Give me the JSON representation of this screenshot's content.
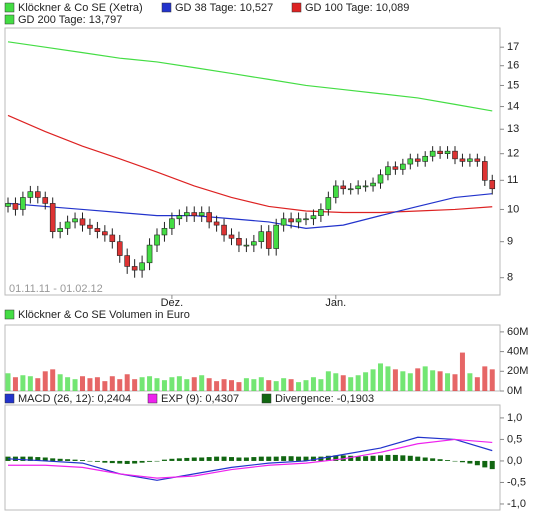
{
  "chart_data": [
    {
      "type": "candlestick",
      "name": "Klöckner & Co SE (Xetra)",
      "color": "#44dd44",
      "down_color": "#dd3333",
      "subtitle": "01.11.11 - 01.02.12",
      "log_scale": true,
      "categories": [
        null,
        null,
        null,
        null,
        null,
        null,
        null,
        null,
        null,
        null,
        null,
        null,
        null,
        null,
        null,
        null,
        null,
        null,
        null,
        null,
        null,
        null,
        "Dez.",
        null,
        null,
        null,
        null,
        null,
        null,
        null,
        null,
        null,
        null,
        null,
        null,
        null,
        null,
        null,
        null,
        null,
        null,
        null,
        null,
        null,
        "Jan.",
        null,
        null,
        null,
        null,
        null,
        null,
        null,
        null,
        null,
        null,
        null,
        null,
        null,
        null,
        null,
        null,
        null,
        null,
        null,
        null,
        null
      ],
      "open": [
        10.1,
        10.2,
        10.0,
        10.4,
        10.6,
        10.4,
        10.2,
        9.3,
        9.4,
        9.6,
        9.7,
        9.5,
        9.4,
        9.3,
        9.2,
        9.0,
        8.6,
        8.3,
        8.2,
        8.4,
        8.9,
        9.2,
        9.4,
        9.7,
        9.8,
        9.9,
        9.8,
        9.9,
        9.6,
        9.5,
        9.2,
        9.1,
        8.9,
        8.9,
        9.0,
        9.3,
        8.8,
        9.5,
        9.7,
        9.6,
        9.7,
        9.7,
        9.8,
        10.0,
        10.4,
        10.8,
        10.7,
        10.7,
        10.8,
        10.8,
        10.9,
        11.2,
        11.5,
        11.4,
        11.6,
        11.8,
        11.7,
        11.9,
        12.1,
        12.0,
        12.1,
        11.8,
        11.7,
        11.8,
        11.7,
        11.0
      ],
      "high": [
        10.4,
        10.4,
        10.6,
        10.8,
        10.8,
        10.6,
        10.4,
        9.6,
        9.8,
        9.9,
        9.9,
        9.7,
        9.6,
        9.5,
        9.4,
        9.2,
        8.8,
        8.5,
        8.6,
        9.1,
        9.4,
        9.6,
        9.9,
        10.0,
        10.1,
        10.1,
        10.1,
        10.1,
        9.8,
        9.7,
        9.4,
        9.3,
        9.1,
        9.2,
        9.5,
        9.5,
        9.7,
        9.9,
        9.9,
        9.9,
        9.9,
        10.0,
        10.2,
        10.6,
        11.0,
        11.0,
        10.9,
        11.0,
        11.0,
        11.1,
        11.4,
        11.7,
        11.7,
        11.8,
        12.0,
        12.0,
        12.1,
        12.3,
        12.3,
        12.3,
        12.3,
        12.0,
        12.0,
        12.0,
        11.9,
        11.2
      ],
      "low": [
        9.9,
        9.8,
        9.8,
        10.2,
        10.2,
        10.0,
        9.1,
        9.1,
        9.2,
        9.4,
        9.3,
        9.2,
        9.1,
        9.0,
        8.8,
        8.4,
        8.1,
        8.0,
        8.0,
        8.2,
        8.7,
        9.0,
        9.2,
        9.5,
        9.6,
        9.6,
        9.6,
        9.4,
        9.3,
        9.0,
        8.9,
        8.7,
        8.7,
        8.7,
        8.8,
        8.6,
        8.6,
        9.3,
        9.4,
        9.4,
        9.5,
        9.5,
        9.6,
        9.8,
        10.2,
        10.5,
        10.5,
        10.5,
        10.6,
        10.6,
        10.7,
        11.0,
        11.2,
        11.2,
        11.4,
        11.5,
        11.5,
        11.7,
        11.8,
        11.8,
        11.6,
        11.5,
        11.5,
        11.5,
        10.8,
        10.5
      ],
      "close": [
        10.2,
        10.0,
        10.4,
        10.6,
        10.4,
        10.2,
        9.3,
        9.4,
        9.6,
        9.7,
        9.5,
        9.4,
        9.3,
        9.2,
        9.0,
        8.6,
        8.3,
        8.2,
        8.4,
        8.9,
        9.2,
        9.4,
        9.7,
        9.8,
        9.9,
        9.8,
        9.9,
        9.6,
        9.5,
        9.2,
        9.1,
        8.9,
        8.9,
        9.0,
        9.3,
        8.8,
        9.5,
        9.7,
        9.6,
        9.7,
        9.7,
        9.8,
        10.0,
        10.4,
        10.8,
        10.7,
        10.7,
        10.8,
        10.8,
        10.9,
        11.2,
        11.5,
        11.4,
        11.6,
        11.8,
        11.7,
        11.9,
        12.1,
        12.0,
        12.1,
        11.8,
        11.7,
        11.8,
        11.7,
        11.0,
        10.7
      ],
      "series": [
        {
          "name": "GD 38 Tage: 10,527",
          "color": "#2233cc",
          "x": [
            0,
            5,
            10,
            15,
            20,
            25,
            30,
            35,
            40,
            45,
            50,
            55,
            60,
            65
          ],
          "values": [
            10.2,
            10.1,
            10.0,
            9.9,
            9.8,
            9.8,
            9.7,
            9.6,
            9.4,
            9.5,
            9.8,
            10.1,
            10.4,
            10.53
          ]
        },
        {
          "name": "GD 100 Tage: 10,089",
          "color": "#dd2222",
          "x": [
            0,
            5,
            10,
            15,
            20,
            25,
            30,
            35,
            40,
            45,
            50,
            55,
            60,
            65
          ],
          "values": [
            13.6,
            12.9,
            12.3,
            11.8,
            11.3,
            10.8,
            10.4,
            10.1,
            9.95,
            9.9,
            9.9,
            9.95,
            10.0,
            10.09
          ]
        },
        {
          "name": "GD 200 Tage: 13,797",
          "color": "#44dd44",
          "x": [
            0,
            5,
            10,
            15,
            20,
            25,
            30,
            35,
            40,
            45,
            50,
            55,
            60,
            65
          ],
          "values": [
            17.3,
            17.0,
            16.7,
            16.4,
            16.2,
            15.9,
            15.6,
            15.3,
            15.0,
            14.8,
            14.6,
            14.4,
            14.1,
            13.8
          ]
        }
      ],
      "ylim": [
        7.56,
        18.1
      ],
      "yticks": [
        8,
        9,
        10,
        11,
        12,
        13,
        14,
        15,
        16,
        17
      ]
    },
    {
      "type": "bar",
      "title": "Klöckner & Co SE Volumen in Euro",
      "color": "#44dd44",
      "values": [
        18,
        14,
        16,
        15,
        13,
        20,
        22,
        17,
        14,
        12,
        15,
        13,
        14,
        10,
        15,
        12,
        17,
        12,
        14,
        15,
        13,
        11,
        14,
        15,
        12,
        14,
        16,
        13,
        10,
        12,
        11,
        9,
        13,
        12,
        14,
        11,
        10,
        13,
        12,
        9,
        11,
        14,
        12,
        20,
        18,
        16,
        14,
        16,
        19,
        22,
        28,
        25,
        22,
        20,
        18,
        23,
        25,
        21,
        20,
        18,
        17,
        39,
        18,
        14,
        25,
        22
      ],
      "ylim": [
        0,
        67
      ],
      "yticks": [
        {
          "value": 0,
          "label": "0M"
        },
        {
          "value": 20,
          "label": "20M"
        },
        {
          "value": 40,
          "label": "40M"
        },
        {
          "value": 60,
          "label": "60M"
        }
      ]
    },
    {
      "type": "macd",
      "series": [
        {
          "name": "MACD (26, 12): 0,2404",
          "color": "#2233cc",
          "x": [
            0,
            5,
            10,
            15,
            20,
            25,
            30,
            35,
            40,
            45,
            50,
            55,
            60,
            65
          ],
          "values": [
            0.05,
            0.0,
            -0.05,
            -0.3,
            -0.45,
            -0.3,
            -0.15,
            -0.05,
            0.0,
            0.15,
            0.3,
            0.55,
            0.5,
            0.24
          ]
        },
        {
          "name": "EXP (9): 0,4307",
          "color": "#ee22ee",
          "x": [
            0,
            5,
            10,
            15,
            20,
            25,
            30,
            35,
            40,
            45,
            50,
            55,
            60,
            65
          ],
          "values": [
            -0.1,
            -0.1,
            -0.15,
            -0.3,
            -0.4,
            -0.35,
            -0.2,
            -0.1,
            -0.05,
            0.05,
            0.2,
            0.4,
            0.5,
            0.43
          ]
        }
      ],
      "bars": {
        "name": "Divergence: -0,1903",
        "color": "#116611",
        "values": [
          0.1,
          0.1,
          0.1,
          0.1,
          0.09,
          0.08,
          0.06,
          0.05,
          0.04,
          0.03,
          0.02,
          0.0,
          -0.02,
          -0.04,
          -0.05,
          -0.06,
          -0.07,
          -0.06,
          -0.04,
          -0.02,
          0.0,
          0.03,
          0.05,
          0.06,
          0.07,
          0.08,
          0.08,
          0.09,
          0.1,
          0.1,
          0.09,
          0.08,
          0.08,
          0.09,
          0.1,
          0.1,
          0.1,
          0.11,
          0.11,
          0.1,
          0.1,
          0.1,
          0.1,
          0.12,
          0.13,
          0.13,
          0.12,
          0.11,
          0.11,
          0.12,
          0.13,
          0.14,
          0.14,
          0.13,
          0.12,
          0.1,
          0.08,
          0.06,
          0.04,
          0.02,
          0.0,
          -0.03,
          -0.06,
          -0.1,
          -0.15,
          -0.19
        ]
      },
      "ylim": [
        -1.14,
        1.3
      ],
      "yticks": [
        {
          "value": 1.0,
          "label": "1,0"
        },
        {
          "value": 0.5,
          "label": "0,5"
        },
        {
          "value": 0,
          "label": "0,0"
        },
        {
          "value": -0.5,
          "label": "-0,5"
        },
        {
          "value": -1.0,
          "label": "-1,0"
        }
      ]
    }
  ]
}
